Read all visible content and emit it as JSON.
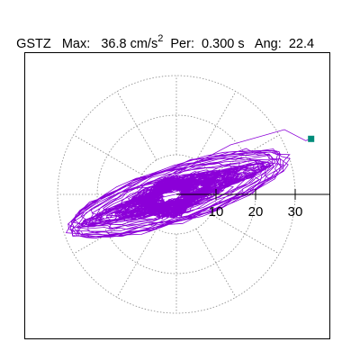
{
  "title": {
    "station": "GSTZ",
    "max_label": "Max:",
    "max_value": "36.8 cm/s",
    "max_exp": "2",
    "per_label": "Per:",
    "per_value": "0.300 s",
    "ang_label": "Ang:",
    "ang_value": "22.4"
  },
  "chart_data": {
    "type": "polar-orbit",
    "axis_ticks": [
      10,
      20,
      30
    ],
    "tick_labels": [
      "10",
      "20",
      "30"
    ],
    "rings": [
      10,
      20,
      30
    ],
    "spokes_deg": [
      0,
      30,
      60,
      90,
      120,
      150,
      180,
      210,
      240,
      270,
      300,
      330
    ],
    "max_value": 36.8,
    "max_angle_deg": 22.4,
    "major_axis_angle_deg": 18,
    "orbit_envelope": [
      {
        "semi_major": 30,
        "semi_minor": 7
      },
      {
        "semi_major": 24,
        "semi_minor": 8
      },
      {
        "semi_major": 14,
        "semi_minor": 6
      }
    ],
    "colors": {
      "orbit": "#8b00d8",
      "marker": "#008c7a",
      "axes": "#000000",
      "grid": "#888888"
    }
  }
}
